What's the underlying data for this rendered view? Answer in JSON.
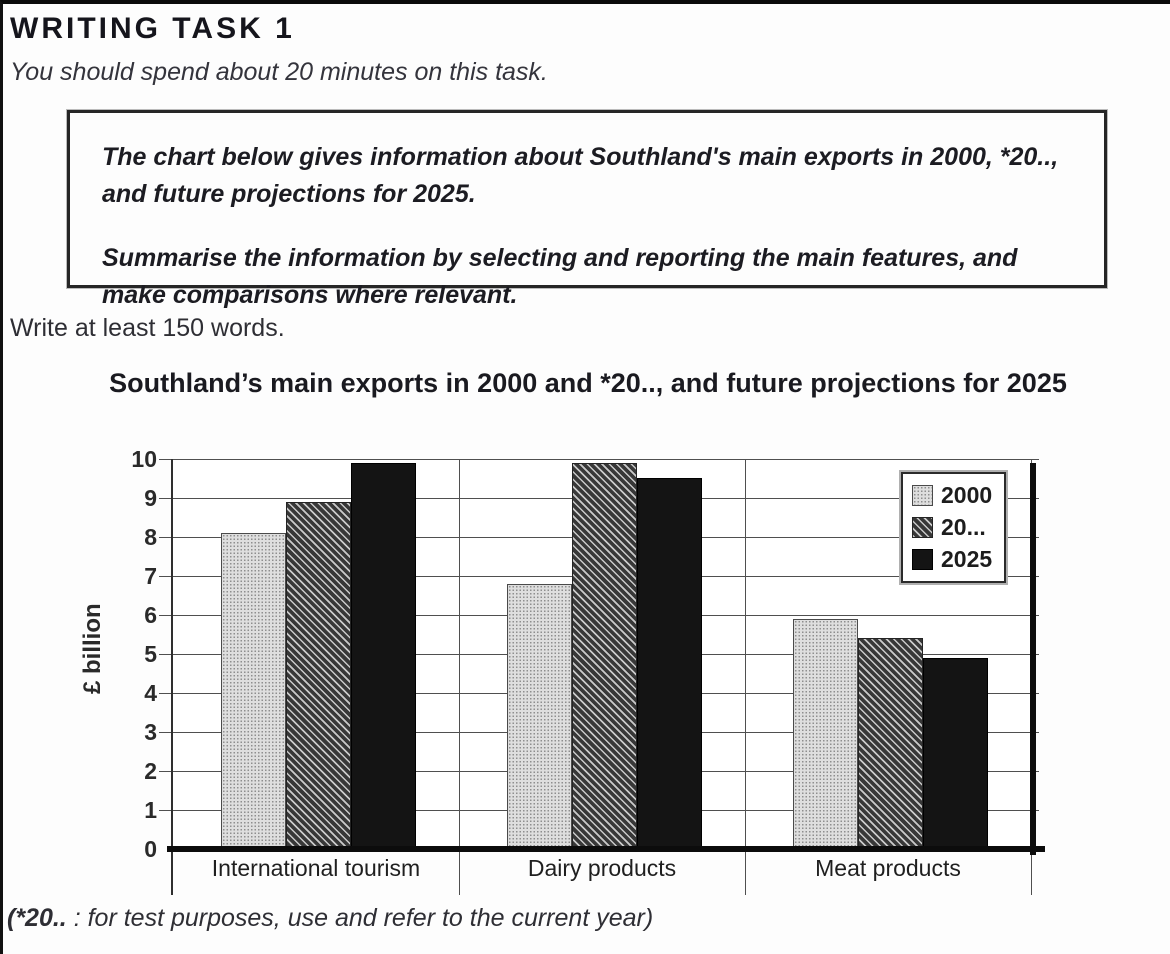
{
  "page": {
    "heading": "WRITING TASK 1",
    "time_note": "You should spend about 20 minutes on this task.",
    "task_box": {
      "para1": "The chart below gives information about Southland's main exports in 2000, *20.., and future projections for 2025.",
      "para2": "Summarise the information by selecting and reporting the main features, and make comparisons where relevant."
    },
    "word_note": "Write at least 150 words.",
    "footnote_bold": "(*20..",
    "footnote_rest": " : for test purposes, use and refer to the current year)"
  },
  "chart_data": {
    "type": "bar",
    "title": "Southland’s main exports in 2000 and *20..,  and future projections for 2025",
    "ylabel": "£ billion",
    "xlabel": "",
    "ylim": [
      0,
      10
    ],
    "ytick_step": 1,
    "grid": "horizontal unit gridlines; vertical lines at category boundaries",
    "legend_position": "top-right-inside",
    "categories": [
      "International tourism",
      "Dairy products",
      "Meat products"
    ],
    "series": [
      {
        "name": "2000",
        "pattern": "dotted-light-gray",
        "values": [
          8.1,
          6.8,
          5.9
        ]
      },
      {
        "name": "20...",
        "pattern": "dark-diagonal-hatch",
        "values": [
          8.9,
          9.9,
          5.4
        ]
      },
      {
        "name": "2025",
        "pattern": "solid-black",
        "values": [
          9.9,
          9.5,
          4.9
        ]
      }
    ],
    "colors": {
      "bar_2000_bg": "#dedede",
      "bar_hatch_dark": "#383838",
      "bar_2025": "#141414",
      "grid": "#4f4f4f",
      "axis": "#0c0c0c",
      "text": "#1f1f1f"
    }
  }
}
